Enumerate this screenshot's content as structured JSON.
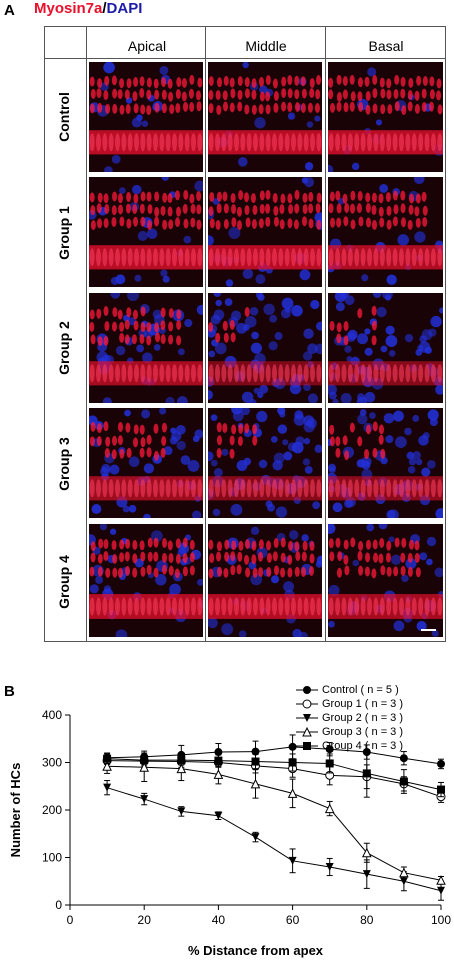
{
  "panel_a": {
    "letter": "A",
    "title_red": "Myosin7a",
    "title_sep": "/",
    "title_blue": "DAPI",
    "columns": [
      "Apical",
      "Middle",
      "Basal"
    ],
    "rows": [
      "Control",
      "Group 1",
      "Group 2",
      "Group 3",
      "Group 4"
    ]
  },
  "panel_b": {
    "letter": "B"
  },
  "chart_data": {
    "type": "line",
    "xlabel": "% Distance from apex",
    "ylabel": "Number of HCs",
    "xlim": [
      0,
      100
    ],
    "ylim": [
      0,
      400
    ],
    "xticks": [
      0,
      20,
      40,
      60,
      80,
      100
    ],
    "yticks": [
      0,
      100,
      200,
      300,
      400
    ],
    "grid": false,
    "legend_position": "top-right",
    "x": [
      10,
      20,
      30,
      40,
      50,
      60,
      70,
      80,
      90,
      100
    ],
    "series": [
      {
        "name": "Control ( n = 5 )",
        "marker": "filled-circle",
        "values": [
          310,
          312,
          316,
          322,
          323,
          333,
          328,
          322,
          309,
          297
        ],
        "errors": [
          10,
          12,
          20,
          18,
          22,
          25,
          14,
          15,
          14,
          10
        ]
      },
      {
        "name": "Group 1 ( n = 3 )",
        "marker": "open-circle",
        "values": [
          304,
          303,
          302,
          300,
          293,
          287,
          273,
          270,
          255,
          228
        ],
        "errors": [
          8,
          10,
          12,
          10,
          15,
          18,
          20,
          25,
          15,
          12
        ]
      },
      {
        "name": "Group 2 ( n = 3 )",
        "marker": "filled-triangle-down",
        "values": [
          247,
          223,
          197,
          188,
          143,
          93,
          80,
          65,
          50,
          30
        ],
        "errors": [
          15,
          12,
          10,
          8,
          10,
          25,
          18,
          30,
          20,
          20
        ]
      },
      {
        "name": "Group 3 ( n = 3 )",
        "marker": "open-triangle-up",
        "values": [
          292,
          290,
          287,
          275,
          255,
          235,
          203,
          110,
          68,
          52
        ],
        "errors": [
          15,
          30,
          25,
          20,
          30,
          30,
          15,
          20,
          12,
          8
        ]
      },
      {
        "name": "Group 4 ( n = 3 )",
        "marker": "filled-square",
        "values": [
          308,
          305,
          305,
          304,
          302,
          300,
          298,
          277,
          260,
          243
        ],
        "errors": [
          10,
          8,
          10,
          12,
          15,
          18,
          20,
          50,
          25,
          15
        ]
      }
    ],
    "colors": {
      "axis": "#000000",
      "series": "#000000"
    }
  }
}
